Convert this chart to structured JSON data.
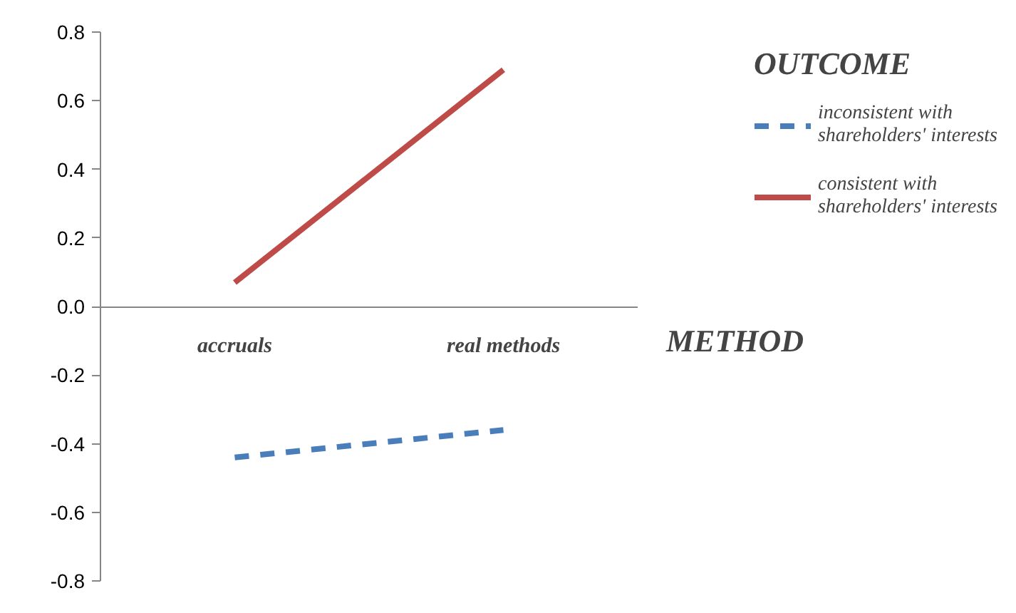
{
  "chart_data": {
    "type": "line",
    "categories": [
      "accruals",
      "real methods"
    ],
    "xlabel": "METHOD",
    "legend_title": "OUTCOME",
    "series": [
      {
        "name": "inconsistent with shareholders' interests",
        "color": "#4a7ebb",
        "values": [
          -0.44,
          -0.36
        ],
        "line_style": "dashed"
      },
      {
        "name": "consistent with shareholders' interests",
        "color": "#be4b48",
        "values": [
          0.07,
          0.69
        ],
        "line_style": "solid"
      }
    ],
    "ylim": [
      -0.8,
      0.8
    ],
    "yticks": [
      {
        "value": -0.8,
        "label": "-0.8"
      },
      {
        "value": -0.6,
        "label": "-0.6"
      },
      {
        "value": -0.4,
        "label": "-0.4"
      },
      {
        "value": -0.2,
        "label": "-0.2"
      },
      {
        "value": 0,
        "label": "0.0"
      },
      {
        "value": 0.2,
        "label": "0.2"
      },
      {
        "value": 0.4,
        "label": "0.4"
      },
      {
        "value": 0.6,
        "label": "0.6"
      },
      {
        "value": 0.8,
        "label": "0.8"
      }
    ],
    "grid": false,
    "legend": "top right",
    "marker": "none"
  }
}
